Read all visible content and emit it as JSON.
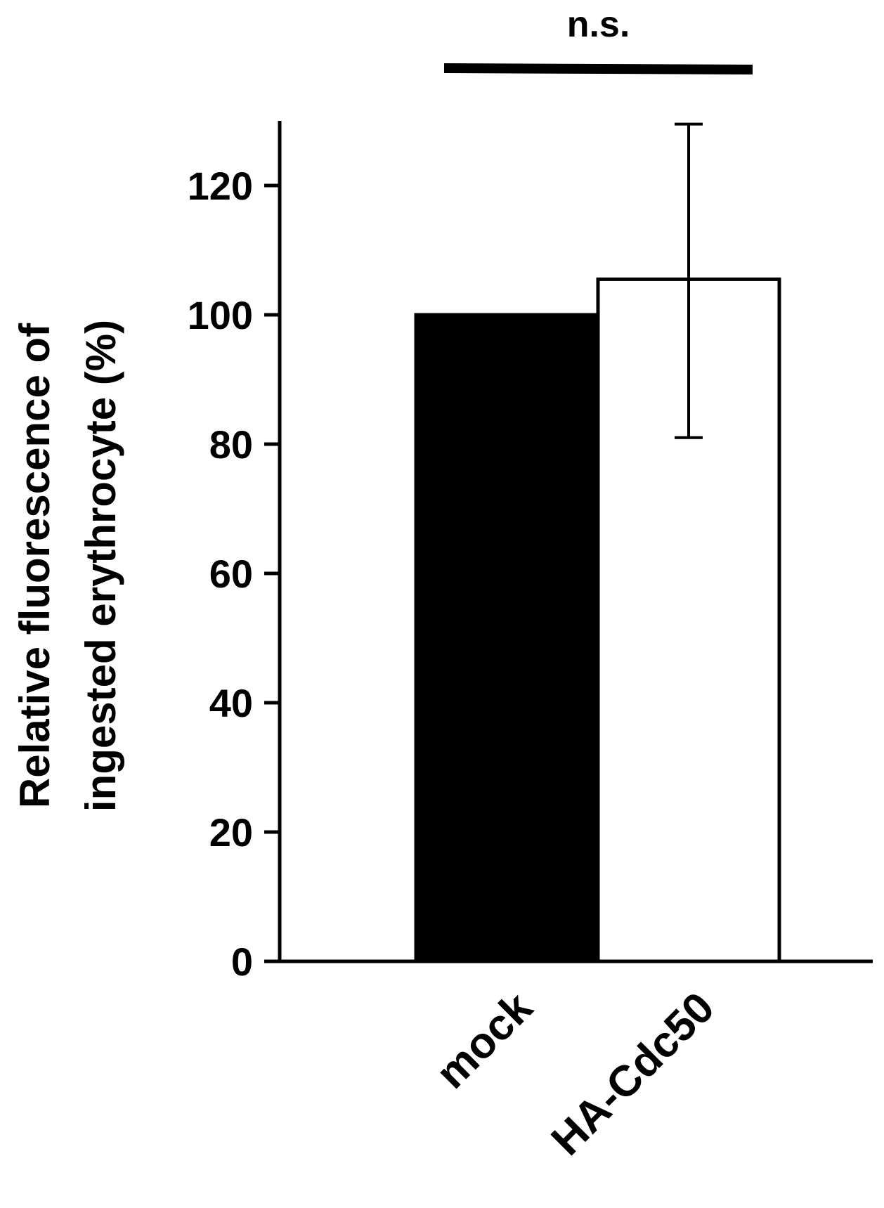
{
  "chart_data": {
    "type": "bar",
    "title": "",
    "xlabel": "",
    "ylabel_lines": [
      "Relative fluorescence of",
      "ingested erythrocyte (%)"
    ],
    "categories": [
      "mock",
      "HA-Cdc50"
    ],
    "values": [
      100,
      105.5
    ],
    "error_bars": [
      null,
      {
        "low": 81,
        "high": 129.5
      }
    ],
    "bar_colors": [
      "#000000",
      "#ffffff"
    ],
    "bar_edge_color": "#000000",
    "ylim": [
      0,
      130
    ],
    "yticks": [
      0,
      20,
      40,
      60,
      80,
      100,
      120
    ],
    "ytick_labels": [
      "0",
      "20",
      "40",
      "60",
      "80",
      "100",
      "120"
    ],
    "grid": false,
    "legend": "none",
    "significance": {
      "label": "n.s.",
      "between": [
        "mock",
        "HA-Cdc50"
      ]
    }
  }
}
